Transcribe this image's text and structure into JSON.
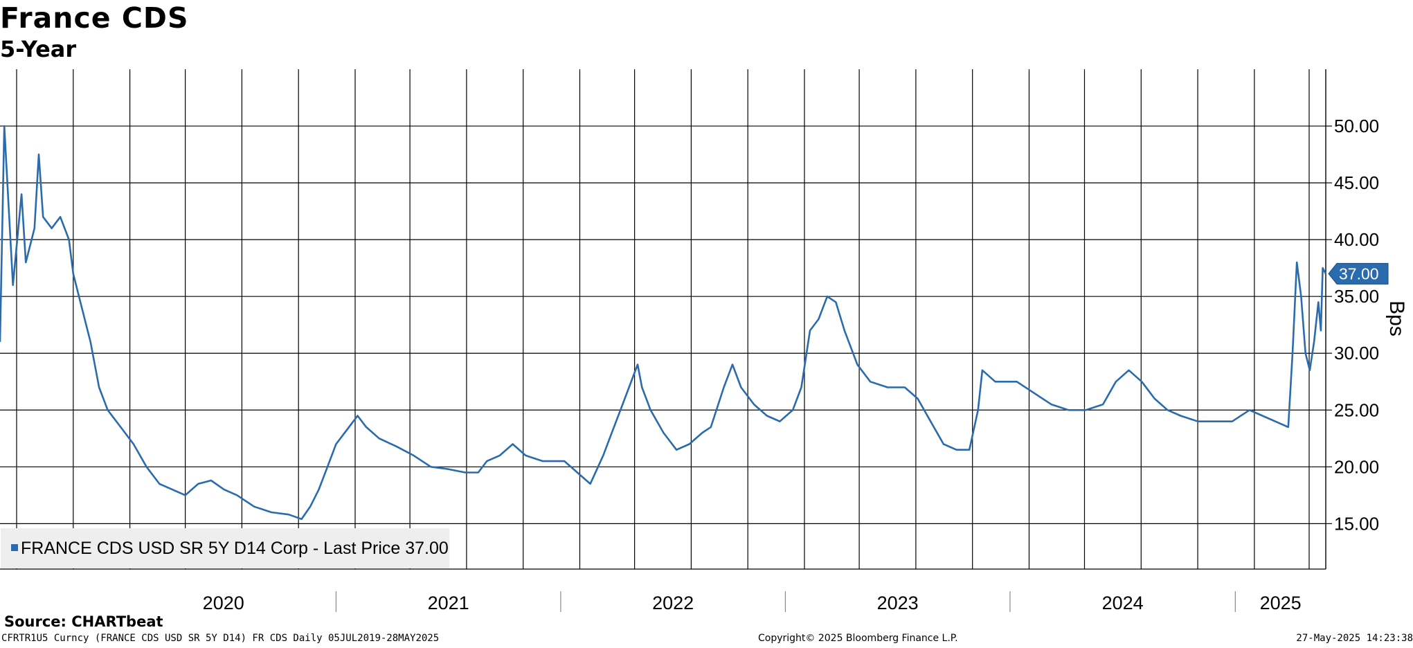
{
  "header": {
    "title": "France CDS",
    "subtitle": "5-Year"
  },
  "footer": {
    "source": "Source:  CHARTbeat",
    "ticker_info": "CFRTR1U5 Curncy (FRANCE CDS USD SR 5Y D14) FR CDS  Daily 05JUL2019-28MAY2025",
    "copyright": "Copyright© 2025 Bloomberg Finance L.P.",
    "timestamp": "27-May-2025 14:23:38"
  },
  "colors": {
    "series": "#2a6bad",
    "grid": "#000000",
    "last_price_bg": "#2a6bad",
    "legend_bg": "#eeeeee"
  },
  "chart_data": {
    "type": "line",
    "title": "France CDS",
    "subtitle": "5-Year",
    "ylabel": "Bps",
    "ylim": [
      11,
      55
    ],
    "y_ticks": [
      "15.00",
      "20.00",
      "25.00",
      "30.00",
      "35.00",
      "40.00",
      "45.00",
      "50.00"
    ],
    "x_range": [
      "2019-07-05",
      "2025-05-28"
    ],
    "x_tick_labels": [
      "2020",
      "2021",
      "2022",
      "2023",
      "2024",
      "2025"
    ],
    "grid": true,
    "grid_interval": "monthly",
    "legend_position": "bottom-left",
    "legend": "FRANCE CDS USD SR 5Y D14 Corp - Last Price 37.00",
    "last_price_label": "37.00",
    "last_price": 37.0,
    "series": [
      {
        "name": "FRANCE CDS USD SR 5Y D14 Corp - Last Price 37.00",
        "points": [
          [
            "2019-07-05",
            31
          ],
          [
            "2019-07-12",
            50
          ],
          [
            "2019-07-19",
            43
          ],
          [
            "2019-07-26",
            36
          ],
          [
            "2019-08-09",
            44
          ],
          [
            "2019-08-16",
            38
          ],
          [
            "2019-08-30",
            41
          ],
          [
            "2019-09-06",
            47.5
          ],
          [
            "2019-09-13",
            42
          ],
          [
            "2019-09-27",
            41
          ],
          [
            "2019-10-11",
            42
          ],
          [
            "2019-10-25",
            40
          ],
          [
            "2019-11-01",
            37
          ],
          [
            "2019-11-15",
            34
          ],
          [
            "2019-11-29",
            31
          ],
          [
            "2019-12-13",
            27
          ],
          [
            "2019-12-27",
            25
          ],
          [
            "2020-01-17",
            23.5
          ],
          [
            "2020-02-07",
            22
          ],
          [
            "2020-02-28",
            20
          ],
          [
            "2020-03-20",
            18.5
          ],
          [
            "2020-04-10",
            18
          ],
          [
            "2020-05-01",
            17.5
          ],
          [
            "2020-05-22",
            18.5
          ],
          [
            "2020-06-12",
            18.8
          ],
          [
            "2020-07-03",
            18
          ],
          [
            "2020-07-24",
            17.5
          ],
          [
            "2020-08-21",
            16.5
          ],
          [
            "2020-09-18",
            16
          ],
          [
            "2020-10-16",
            15.8
          ],
          [
            "2020-11-06",
            15.4
          ],
          [
            "2020-11-20",
            16.5
          ],
          [
            "2020-12-04",
            18
          ],
          [
            "2020-12-18",
            20
          ],
          [
            "2021-01-01",
            22
          ],
          [
            "2021-01-15",
            23
          ],
          [
            "2021-02-05",
            24.5
          ],
          [
            "2021-02-19",
            23.5
          ],
          [
            "2021-03-12",
            22.5
          ],
          [
            "2021-04-09",
            21.8
          ],
          [
            "2021-05-07",
            21
          ],
          [
            "2021-06-04",
            20
          ],
          [
            "2021-07-02",
            19.8
          ],
          [
            "2021-07-30",
            19.5
          ],
          [
            "2021-08-20",
            19.5
          ],
          [
            "2021-09-03",
            20.5
          ],
          [
            "2021-09-24",
            21
          ],
          [
            "2021-10-15",
            22
          ],
          [
            "2021-11-05",
            21
          ],
          [
            "2021-12-03",
            20.5
          ],
          [
            "2022-01-07",
            20.5
          ],
          [
            "2022-01-28",
            19.5
          ],
          [
            "2022-02-18",
            18.5
          ],
          [
            "2022-03-11",
            21
          ],
          [
            "2022-03-25",
            23
          ],
          [
            "2022-04-08",
            25
          ],
          [
            "2022-04-22",
            27
          ],
          [
            "2022-05-06",
            29
          ],
          [
            "2022-05-13",
            27
          ],
          [
            "2022-05-27",
            25
          ],
          [
            "2022-06-17",
            23
          ],
          [
            "2022-07-08",
            21.5
          ],
          [
            "2022-07-29",
            22
          ],
          [
            "2022-08-19",
            23
          ],
          [
            "2022-09-02",
            23.5
          ],
          [
            "2022-09-23",
            27
          ],
          [
            "2022-10-07",
            29
          ],
          [
            "2022-10-21",
            27
          ],
          [
            "2022-11-11",
            25.5
          ],
          [
            "2022-12-02",
            24.5
          ],
          [
            "2022-12-23",
            24
          ],
          [
            "2023-01-13",
            25
          ],
          [
            "2023-01-27",
            27
          ],
          [
            "2023-02-10",
            32
          ],
          [
            "2023-02-24",
            33
          ],
          [
            "2023-03-10",
            35
          ],
          [
            "2023-03-24",
            34.5
          ],
          [
            "2023-04-07",
            32
          ],
          [
            "2023-04-28",
            29
          ],
          [
            "2023-05-19",
            27.5
          ],
          [
            "2023-06-16",
            27
          ],
          [
            "2023-07-14",
            27
          ],
          [
            "2023-08-04",
            26
          ],
          [
            "2023-08-25",
            24
          ],
          [
            "2023-09-15",
            22
          ],
          [
            "2023-10-06",
            21.5
          ],
          [
            "2023-10-27",
            21.5
          ],
          [
            "2023-11-10",
            25
          ],
          [
            "2023-11-17",
            28.5
          ],
          [
            "2023-12-08",
            27.5
          ],
          [
            "2024-01-12",
            27.5
          ],
          [
            "2024-02-09",
            26.5
          ],
          [
            "2024-03-08",
            25.5
          ],
          [
            "2024-04-05",
            25
          ],
          [
            "2024-05-03",
            25
          ],
          [
            "2024-05-31",
            25.5
          ],
          [
            "2024-06-21",
            27.5
          ],
          [
            "2024-07-12",
            28.5
          ],
          [
            "2024-08-02",
            27.5
          ],
          [
            "2024-08-23",
            26
          ],
          [
            "2024-09-13",
            25
          ],
          [
            "2024-10-04",
            24.5
          ],
          [
            "2024-11-01",
            24
          ],
          [
            "2024-11-29",
            24
          ],
          [
            "2024-12-27",
            24
          ],
          [
            "2025-01-24",
            25
          ],
          [
            "2025-02-14",
            24.5
          ],
          [
            "2025-03-07",
            24
          ],
          [
            "2025-03-28",
            23.5
          ],
          [
            "2025-04-04",
            30
          ],
          [
            "2025-04-11",
            38
          ],
          [
            "2025-04-18",
            35
          ],
          [
            "2025-04-25",
            30
          ],
          [
            "2025-05-02",
            28.5
          ],
          [
            "2025-05-09",
            31
          ],
          [
            "2025-05-16",
            34.5
          ],
          [
            "2025-05-20",
            32
          ],
          [
            "2025-05-23",
            37.5
          ],
          [
            "2025-05-28",
            37
          ]
        ]
      }
    ]
  }
}
